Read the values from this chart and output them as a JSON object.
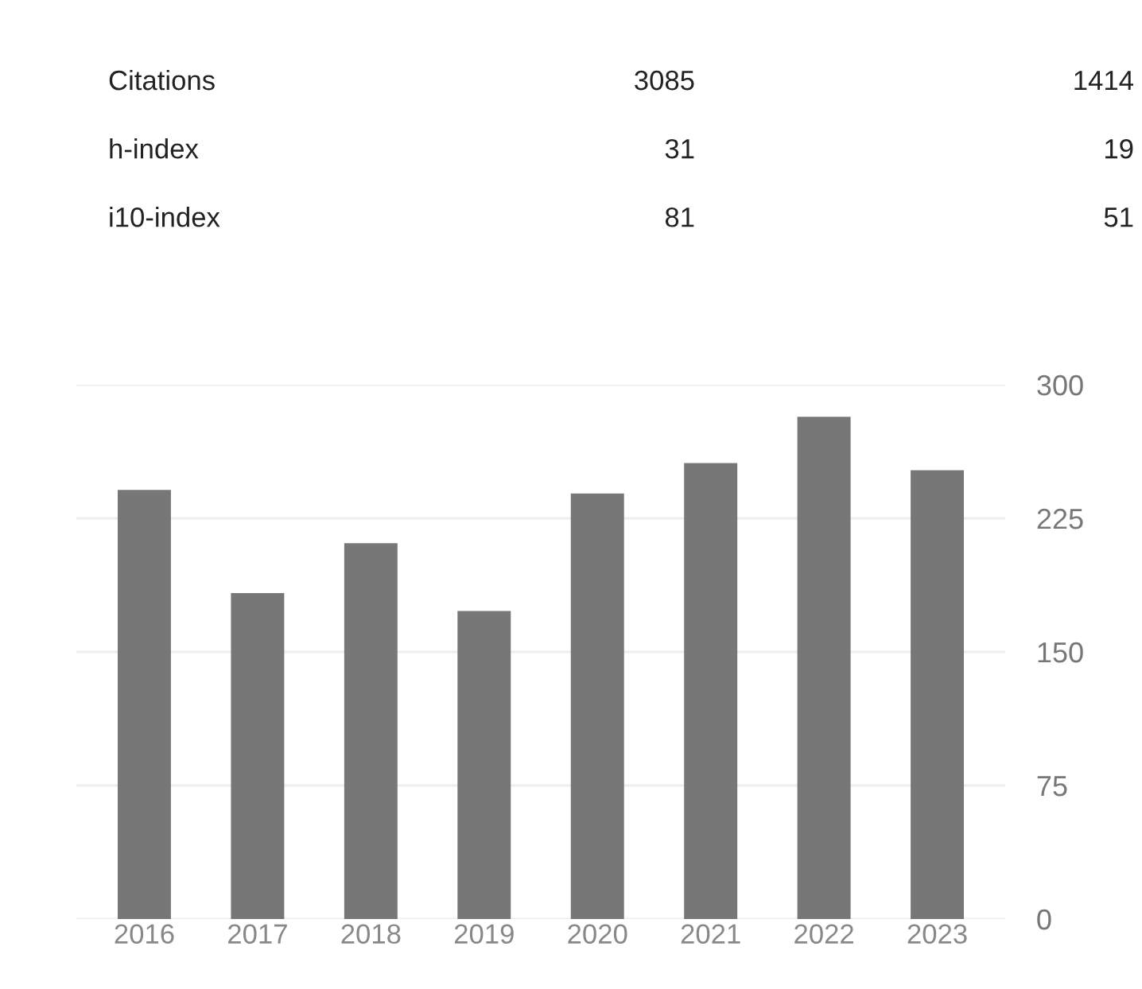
{
  "chart_data": [
    {
      "type": "other",
      "categories": [
        "Citations",
        "h-index",
        "i10-index"
      ],
      "data_labels": true,
      "series": [
        {
          "values": [
            3085,
            31,
            81
          ]
        },
        {
          "values": [
            1414,
            19,
            51
          ]
        }
      ]
    },
    {
      "type": "bar",
      "categories": [
        "2016",
        "2017",
        "2018",
        "2019",
        "2020",
        "2021",
        "2022",
        "2023"
      ],
      "values": [
        241,
        183,
        211,
        173,
        239,
        256,
        282,
        252
      ],
      "color": "#777777",
      "ylim": [
        0,
        300
      ],
      "yticks": [
        0,
        75,
        150,
        225,
        300
      ],
      "grid": "y"
    }
  ]
}
